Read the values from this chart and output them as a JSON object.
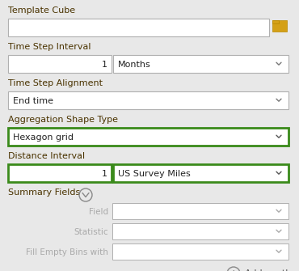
{
  "bg_color": "#e8e8e8",
  "white": "#ffffff",
  "border_gray": "#b0b0b0",
  "border_green": "#3a8a1a",
  "text_dark": "#222222",
  "text_label": "#4a3300",
  "text_muted": "#aaaaaa",
  "folder_color": "#d4a017",
  "fields": [
    {
      "label": "Template Cube",
      "type": "single_wide",
      "border": "gray",
      "has_folder": true,
      "val": ""
    },
    {
      "label": "Time Step Interval",
      "type": "split",
      "border": "gray",
      "left_val": "1",
      "right_val": "Months"
    },
    {
      "label": "Time Step Alignment",
      "type": "single",
      "border": "gray",
      "val": "End time"
    },
    {
      "label": "Aggregation Shape Type",
      "type": "single",
      "border": "green",
      "val": "Hexagon grid"
    },
    {
      "label": "Distance Interval",
      "type": "split",
      "border": "green",
      "left_val": "1",
      "right_val": "US Survey Miles"
    }
  ],
  "summary_label": "Summary Fields",
  "sub_fields": [
    {
      "label": "Field"
    },
    {
      "label": "Statistic"
    },
    {
      "label": "Fill Empty Bins with"
    }
  ]
}
